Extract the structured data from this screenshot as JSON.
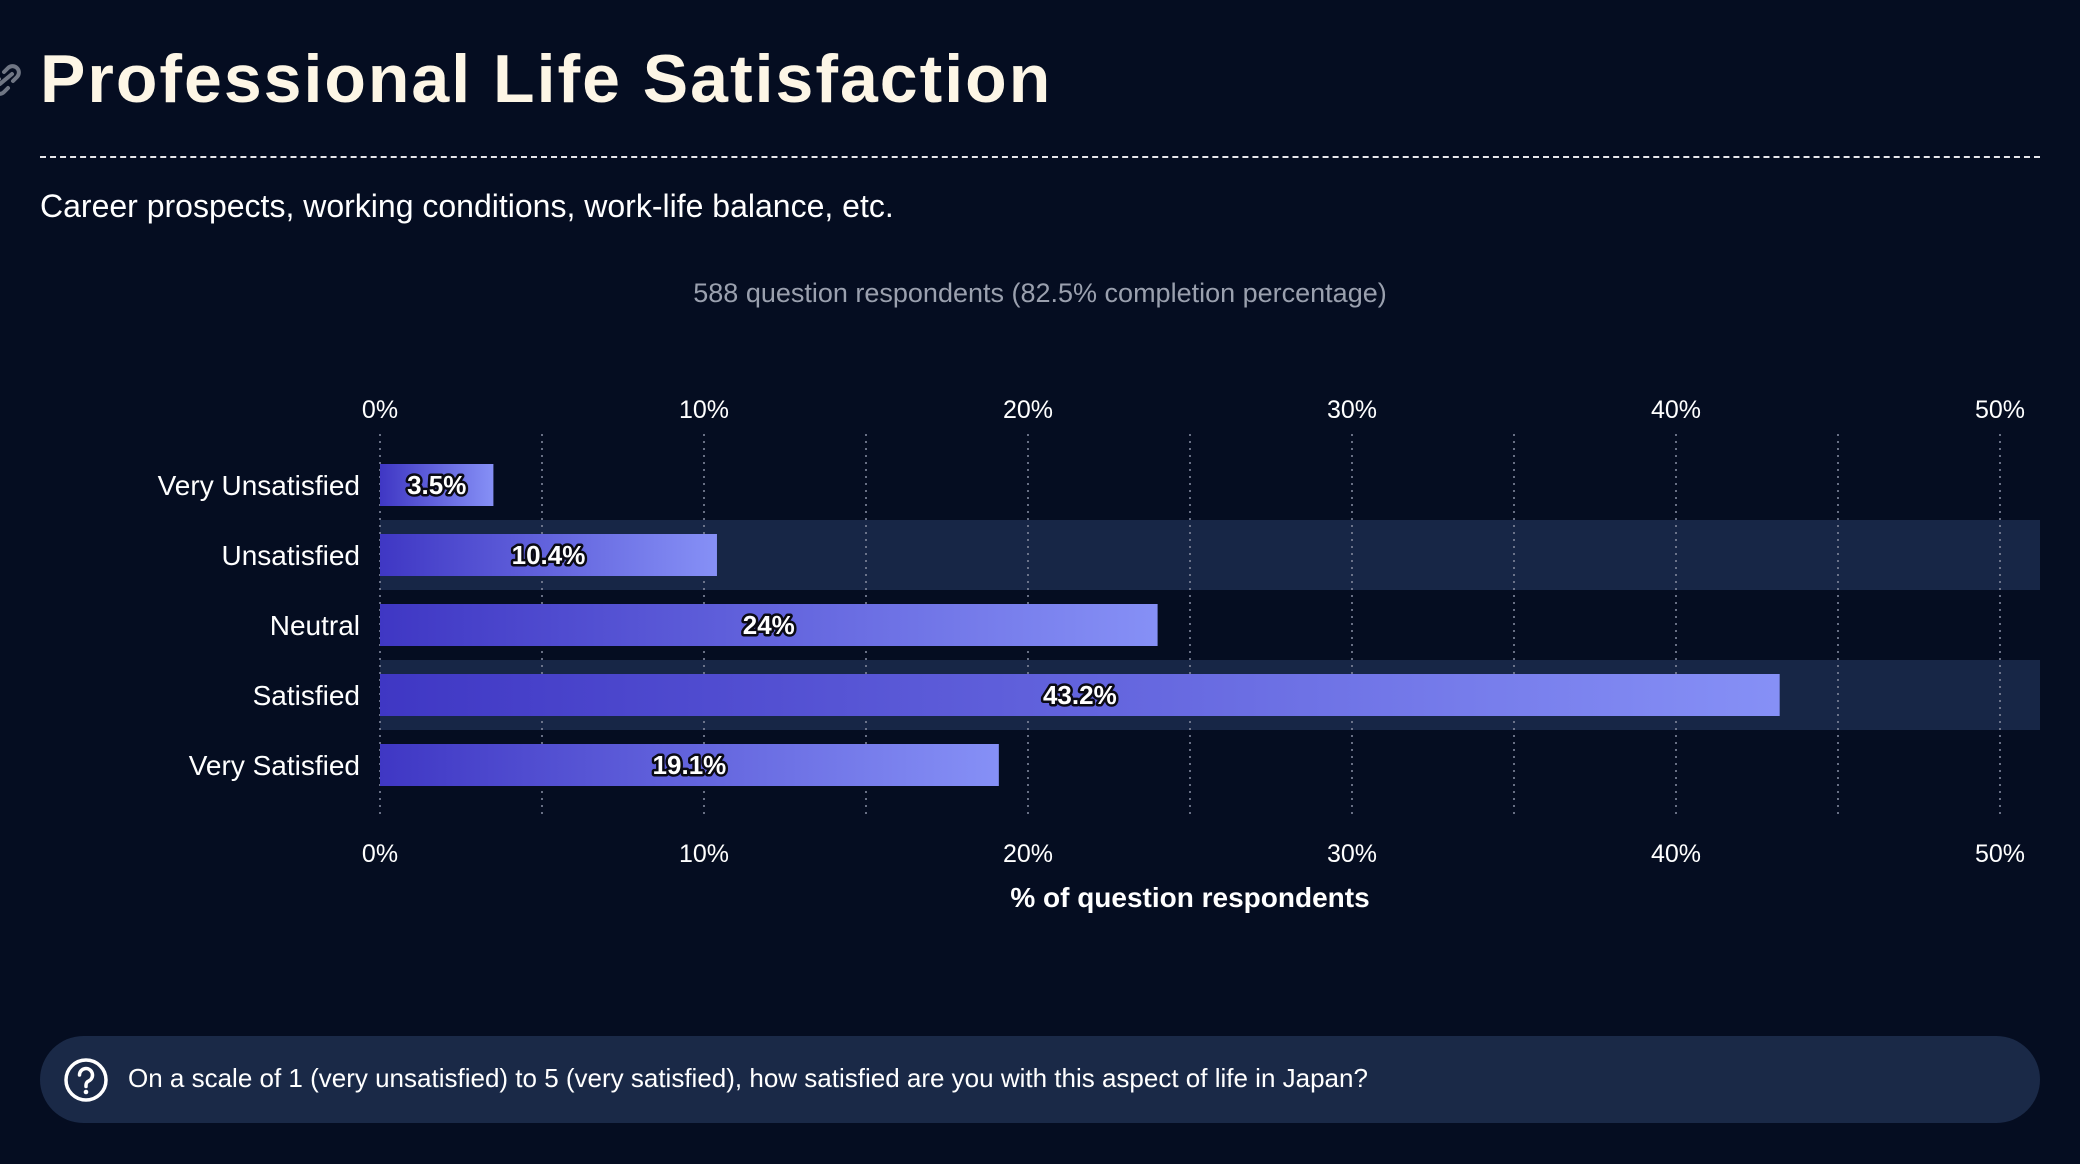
{
  "header": {
    "title": "Professional Life Satisfaction",
    "subtitle": "Career prospects, working conditions, work-life balance, etc.",
    "respondents": "588 question respondents (82.5% completion percentage)",
    "link_icon": "link-icon"
  },
  "chart_data": {
    "type": "bar",
    "orientation": "horizontal",
    "categories": [
      "Very Unsatisfied",
      "Unsatisfied",
      "Neutral",
      "Satisfied",
      "Very Satisfied"
    ],
    "values": [
      3.5,
      10.4,
      24,
      43.2,
      19.1
    ],
    "value_labels": [
      "3.5%",
      "10.4%",
      "24%",
      "43.2%",
      "19.1%"
    ],
    "xlim": [
      0,
      50
    ],
    "x_ticks": [
      0,
      10,
      20,
      30,
      40,
      50
    ],
    "x_tick_labels": [
      "0%",
      "10%",
      "20%",
      "30%",
      "40%",
      "50%"
    ],
    "xlabel": "% of question respondents",
    "ylabel": "",
    "grid": true,
    "colors": {
      "bar_start": "#3f37c4",
      "bar_end": "#8690f6",
      "row_band": "#172646",
      "grid": "#7a8196"
    }
  },
  "question": {
    "icon": "question-circle-icon",
    "text": "On a scale of 1 (very unsatisfied) to 5 (very satisfied), how satisfied are you with this aspect of life in Japan?"
  }
}
